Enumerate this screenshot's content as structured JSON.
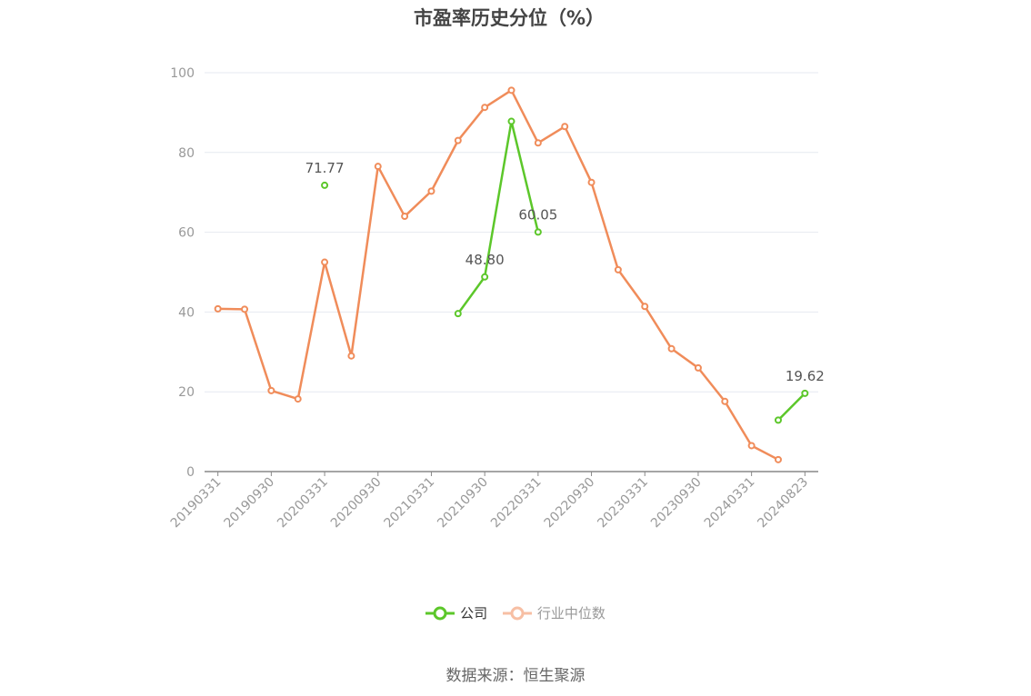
{
  "title": "市盈率历史分位（%）",
  "source": "数据来源：恒生聚源",
  "colors": {
    "company": "#5cc72a",
    "industry": "#f08c5a",
    "industry_legend": "#f7bfa4",
    "grid": "#e6e9f0",
    "axis": "#888888"
  },
  "chart_data": {
    "type": "line",
    "title": "市盈率历史分位（%）",
    "ylim": [
      0,
      100
    ],
    "yticks": [
      "0",
      "20",
      "40",
      "60",
      "80",
      "100"
    ],
    "x": [
      "20190331",
      "20190630",
      "20190930",
      "20191231",
      "20200331",
      "20200630",
      "20200930",
      "20201231",
      "20210331",
      "20210630",
      "20210930",
      "20211231",
      "20220331",
      "20220630",
      "20220930",
      "20221231",
      "20230331",
      "20230630",
      "20230930",
      "20231231",
      "20240331",
      "20240630",
      "20240823"
    ],
    "xticks": [
      "20190331",
      "20190930",
      "20200331",
      "20200930",
      "20210331",
      "20210930",
      "20220331",
      "20220930",
      "20230331",
      "20230930",
      "20240331",
      "20240823"
    ],
    "series": [
      {
        "name": "公司",
        "color": "#5cc72a",
        "values": [
          null,
          null,
          null,
          null,
          71.77,
          null,
          null,
          null,
          null,
          39.6,
          48.8,
          87.8,
          60.05,
          null,
          null,
          null,
          null,
          null,
          null,
          null,
          null,
          12.9,
          19.62
        ],
        "labels": {
          "4": "71.77",
          "10": "48.80",
          "12": "60.05",
          "22": "19.62"
        }
      },
      {
        "name": "行业中位数",
        "color": "#f08c5a",
        "values": [
          40.8,
          40.7,
          20.3,
          18.2,
          52.5,
          29.0,
          76.5,
          64.0,
          70.3,
          83.0,
          91.3,
          95.6,
          82.4,
          86.5,
          72.5,
          50.6,
          41.4,
          30.8,
          26.0,
          17.6,
          6.5,
          3.0,
          null
        ]
      }
    ],
    "legend": [
      "公司",
      "行业中位数"
    ],
    "legend_position": "bottom"
  }
}
